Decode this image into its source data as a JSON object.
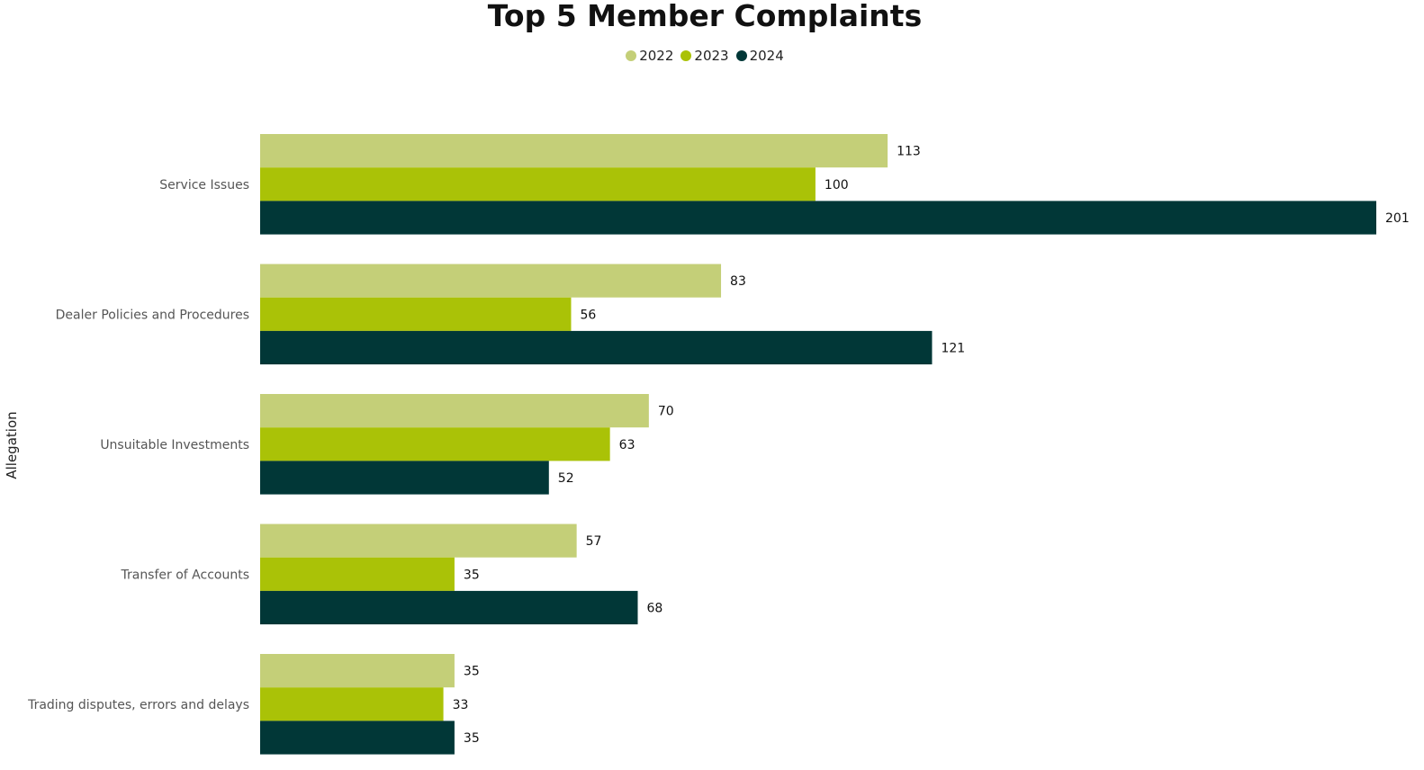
{
  "chart_data": {
    "type": "bar",
    "orientation": "horizontal",
    "title": "Top 5 Member Complaints",
    "ylabel": "Allegation",
    "xlabel": "",
    "categories": [
      "Service Issues",
      "Dealer Policies and Procedures",
      "Unsuitable Investments",
      "Transfer of Accounts",
      "Trading disputes, errors and delays"
    ],
    "series": [
      {
        "name": "2022",
        "color": "#c4cf78",
        "values": [
          113,
          83,
          70,
          57,
          35
        ]
      },
      {
        "name": "2023",
        "color": "#aac207",
        "values": [
          100,
          56,
          63,
          35,
          33
        ]
      },
      {
        "name": "2024",
        "color": "#013737",
        "values": [
          201,
          121,
          52,
          68,
          35
        ]
      }
    ],
    "xlim": [
      0,
      201
    ],
    "legend": "top-center",
    "grid": false,
    "data_labels": true
  }
}
